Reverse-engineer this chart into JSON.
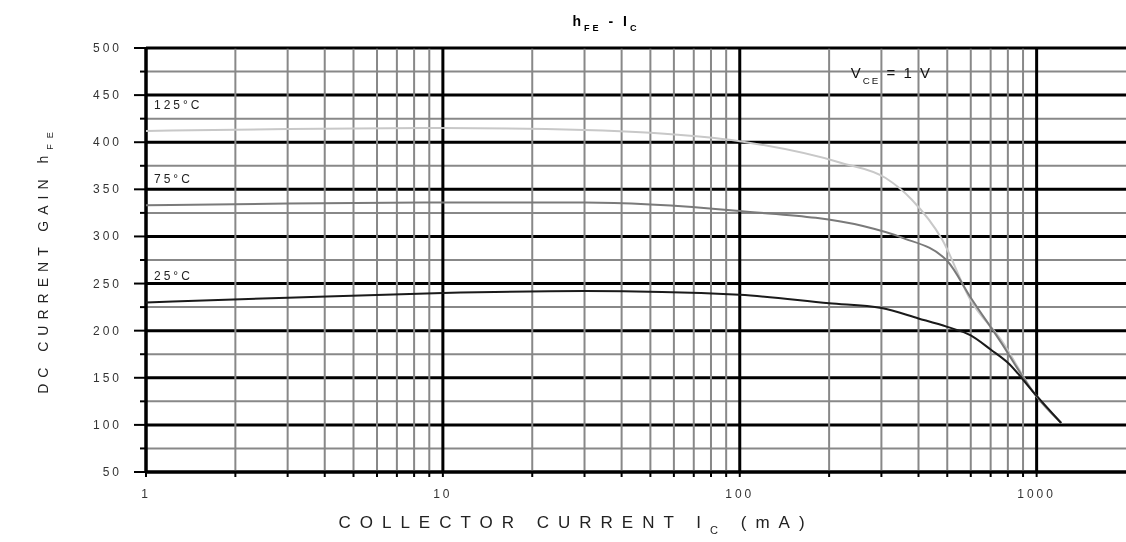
{
  "chart_data": {
    "type": "line",
    "title": "h$_{FE}$ - I$_{C}$",
    "xlabel": "COLLECTOR CURRENT I$_{C}$ (mA)",
    "ylabel": "DC CURRENT GAIN h$_{FE}$",
    "annotations": [
      "V$_{CE}$ = 1 V"
    ],
    "log": "x",
    "grid": true,
    "marker": "none",
    "line_style": "solid",
    "xlim": [
      1,
      2000
    ],
    "ylim": [
      50,
      500
    ],
    "xticks": [
      1,
      {
        "value": 2,
        "label": null
      },
      {
        "value": 3,
        "label": null
      },
      {
        "value": 4,
        "label": null
      },
      {
        "value": 5,
        "label": null
      },
      {
        "value": 6,
        "label": null
      },
      {
        "value": 7,
        "label": null
      },
      {
        "value": 8,
        "label": null
      },
      {
        "value": 9,
        "label": null
      },
      10,
      {
        "value": 20,
        "label": null
      },
      {
        "value": 30,
        "label": null
      },
      {
        "value": 40,
        "label": null
      },
      {
        "value": 50,
        "label": null
      },
      {
        "value": 60,
        "label": null
      },
      {
        "value": 70,
        "label": null
      },
      {
        "value": 80,
        "label": null
      },
      {
        "value": 90,
        "label": null
      },
      100,
      {
        "value": 200,
        "label": null
      },
      {
        "value": 300,
        "label": null
      },
      {
        "value": 400,
        "label": null
      },
      {
        "value": 500,
        "label": null
      },
      {
        "value": 600,
        "label": null
      },
      {
        "value": 700,
        "label": null
      },
      {
        "value": 800,
        "label": null
      },
      {
        "value": 900,
        "label": null
      },
      1000
    ],
    "yticks": [
      50,
      {
        "value": 75,
        "label": null
      },
      100,
      {
        "value": 125,
        "label": null
      },
      150,
      {
        "value": 175,
        "label": null
      },
      200,
      {
        "value": 225,
        "label": null
      },
      250,
      {
        "value": 275,
        "label": null
      },
      300,
      {
        "value": 325,
        "label": null
      },
      350,
      {
        "value": 375,
        "label": null
      },
      400,
      {
        "value": 425,
        "label": null
      },
      450,
      {
        "value": 475,
        "label": null
      },
      500
    ],
    "series": [
      {
        "name": "125°C",
        "color": "#c8c8c8",
        "x": [
          1,
          3,
          10,
          30,
          50,
          100,
          220,
          310,
          380,
          480,
          600,
          760,
          980,
          1210
        ],
        "values": [
          412,
          414,
          415,
          413,
          410,
          401,
          378,
          362,
          339,
          297,
          232,
          190,
          134,
          102
        ]
      },
      {
        "name": "75°C",
        "color": "#7a7a7a",
        "x": [
          1,
          3,
          10,
          30,
          50,
          100,
          260,
          350,
          500,
          600,
          750,
          1000,
          1210
        ],
        "values": [
          333,
          335,
          336,
          336,
          334,
          327,
          311,
          299,
          274,
          235,
          190,
          130,
          102
        ]
      },
      {
        "name": "25°C",
        "color": "#1a1a1a",
        "x": [
          1,
          3,
          10,
          30,
          100,
          200,
          300,
          400,
          500,
          600,
          700,
          800,
          980,
          1210
        ],
        "values": [
          230,
          235,
          240,
          242,
          238,
          229,
          224,
          213,
          204,
          195,
          180,
          166,
          134,
          102
        ]
      }
    ]
  }
}
